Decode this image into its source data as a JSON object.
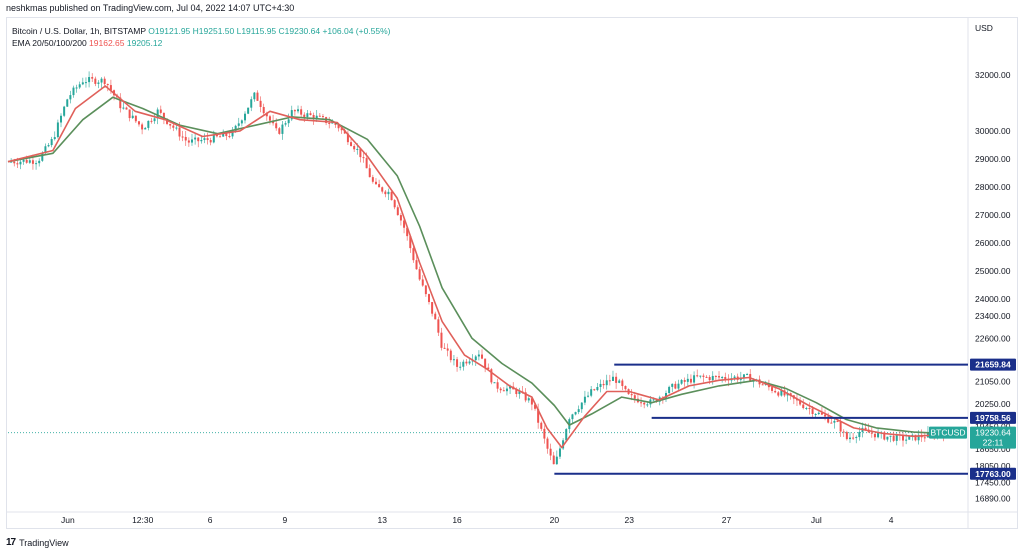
{
  "publish_line": "neshkmas published on TradingView.com, Jul 04, 2022 14:07 UTC+4:30",
  "legend": {
    "symbol": "Bitcoin / U.S. Dollar, 1h, BITSTAMP",
    "ohlc": "O19121.95 H19251.50 L19115.95 C19230.64 +106.04 (+0.55%)",
    "ema_label": "EMA 20/50/100/200",
    "ema_fast": "19162.65",
    "ema_slow": "19205.12"
  },
  "currency": "USD",
  "footer": {
    "brand": "TradingView"
  },
  "colors": {
    "up": "#26a69a",
    "down": "#ef5350",
    "ema_fast": "#e0605a",
    "ema_slow": "#5b8f5b",
    "level": "#1a2f8a",
    "badge_last": "#26a69a"
  },
  "chart_data": {
    "type": "candlestick",
    "title": "Bitcoin / U.S. Dollar, 1h, BITSTAMP",
    "ylabel": "USD",
    "ylim": [
      16400,
      33600
    ],
    "y_ticks": [
      32000,
      30000,
      29000,
      28000,
      27000,
      26000,
      25000,
      24000,
      23400,
      22600,
      21050,
      20250,
      19450,
      18650,
      18050,
      17450,
      16890
    ],
    "x_ticks": [
      "Jun",
      "12:30",
      "6",
      "9",
      "13",
      "16",
      "20",
      "23",
      "27",
      "Jul",
      "4"
    ],
    "price_path": [
      {
        "t": 0,
        "p": 28900
      },
      {
        "t": 4,
        "p": 28950
      },
      {
        "t": 6,
        "p": 29700
      },
      {
        "t": 8,
        "p": 31200
      },
      {
        "t": 10,
        "p": 31800
      },
      {
        "t": 13,
        "p": 31800
      },
      {
        "t": 15,
        "p": 30900
      },
      {
        "t": 18,
        "p": 30100
      },
      {
        "t": 20,
        "p": 30700
      },
      {
        "t": 24,
        "p": 29600
      },
      {
        "t": 27,
        "p": 29700
      },
      {
        "t": 30,
        "p": 29900
      },
      {
        "t": 33,
        "p": 31300
      },
      {
        "t": 36,
        "p": 29900
      },
      {
        "t": 38,
        "p": 30700
      },
      {
        "t": 41,
        "p": 30500
      },
      {
        "t": 44,
        "p": 30200
      },
      {
        "t": 47,
        "p": 29200
      },
      {
        "t": 49,
        "p": 28000
      },
      {
        "t": 51,
        "p": 27800
      },
      {
        "t": 53,
        "p": 26500
      },
      {
        "t": 55,
        "p": 24700
      },
      {
        "t": 57,
        "p": 23300
      },
      {
        "t": 58,
        "p": 22300
      },
      {
        "t": 60,
        "p": 21600
      },
      {
        "t": 63,
        "p": 22100
      },
      {
        "t": 65,
        "p": 20900
      },
      {
        "t": 68,
        "p": 20700
      },
      {
        "t": 70,
        "p": 20300
      },
      {
        "t": 72,
        "p": 18700
      },
      {
        "t": 73,
        "p": 18000
      },
      {
        "t": 75,
        "p": 19800
      },
      {
        "t": 78,
        "p": 20700
      },
      {
        "t": 81,
        "p": 21200
      },
      {
        "t": 83,
        "p": 20500
      },
      {
        "t": 86,
        "p": 20300
      },
      {
        "t": 89,
        "p": 20900
      },
      {
        "t": 92,
        "p": 21200
      },
      {
        "t": 96,
        "p": 21200
      },
      {
        "t": 99,
        "p": 21200
      },
      {
        "t": 102,
        "p": 20800
      },
      {
        "t": 105,
        "p": 20400
      },
      {
        "t": 107,
        "p": 20100
      },
      {
        "t": 109,
        "p": 19800
      },
      {
        "t": 111,
        "p": 19500
      },
      {
        "t": 112,
        "p": 19000
      },
      {
        "t": 114,
        "p": 19300
      },
      {
        "t": 117,
        "p": 19100
      },
      {
        "t": 120,
        "p": 19000
      },
      {
        "t": 123,
        "p": 19150
      },
      {
        "t": 125,
        "p": 19230
      }
    ],
    "ema_fast_path": [
      {
        "t": 0,
        "p": 28900
      },
      {
        "t": 6,
        "p": 29300
      },
      {
        "t": 9,
        "p": 30800
      },
      {
        "t": 13,
        "p": 31600
      },
      {
        "t": 17,
        "p": 30700
      },
      {
        "t": 21,
        "p": 30400
      },
      {
        "t": 26,
        "p": 29800
      },
      {
        "t": 31,
        "p": 30000
      },
      {
        "t": 35,
        "p": 30700
      },
      {
        "t": 39,
        "p": 30400
      },
      {
        "t": 44,
        "p": 30300
      },
      {
        "t": 48,
        "p": 29100
      },
      {
        "t": 52,
        "p": 27600
      },
      {
        "t": 55,
        "p": 25300
      },
      {
        "t": 58,
        "p": 23200
      },
      {
        "t": 61,
        "p": 22000
      },
      {
        "t": 64,
        "p": 21500
      },
      {
        "t": 67,
        "p": 20900
      },
      {
        "t": 70,
        "p": 20500
      },
      {
        "t": 72,
        "p": 19400
      },
      {
        "t": 74,
        "p": 18700
      },
      {
        "t": 77,
        "p": 19800
      },
      {
        "t": 80,
        "p": 20700
      },
      {
        "t": 83,
        "p": 20700
      },
      {
        "t": 87,
        "p": 20400
      },
      {
        "t": 91,
        "p": 20900
      },
      {
        "t": 95,
        "p": 21100
      },
      {
        "t": 99,
        "p": 21200
      },
      {
        "t": 103,
        "p": 20800
      },
      {
        "t": 107,
        "p": 20200
      },
      {
        "t": 110,
        "p": 19800
      },
      {
        "t": 113,
        "p": 19400
      },
      {
        "t": 117,
        "p": 19200
      },
      {
        "t": 121,
        "p": 19100
      },
      {
        "t": 125,
        "p": 19162
      }
    ],
    "ema_slow_path": [
      {
        "t": 0,
        "p": 28900
      },
      {
        "t": 6,
        "p": 29200
      },
      {
        "t": 10,
        "p": 30400
      },
      {
        "t": 14,
        "p": 31200
      },
      {
        "t": 18,
        "p": 30800
      },
      {
        "t": 23,
        "p": 30200
      },
      {
        "t": 28,
        "p": 29900
      },
      {
        "t": 33,
        "p": 30200
      },
      {
        "t": 38,
        "p": 30500
      },
      {
        "t": 43,
        "p": 30400
      },
      {
        "t": 48,
        "p": 29700
      },
      {
        "t": 52,
        "p": 28400
      },
      {
        "t": 55,
        "p": 26600
      },
      {
        "t": 58,
        "p": 24400
      },
      {
        "t": 62,
        "p": 22600
      },
      {
        "t": 66,
        "p": 21700
      },
      {
        "t": 70,
        "p": 21000
      },
      {
        "t": 73,
        "p": 20200
      },
      {
        "t": 75,
        "p": 19500
      },
      {
        "t": 78,
        "p": 19900
      },
      {
        "t": 82,
        "p": 20500
      },
      {
        "t": 86,
        "p": 20300
      },
      {
        "t": 90,
        "p": 20600
      },
      {
        "t": 95,
        "p": 20900
      },
      {
        "t": 100,
        "p": 21100
      },
      {
        "t": 104,
        "p": 20800
      },
      {
        "t": 108,
        "p": 20300
      },
      {
        "t": 112,
        "p": 19700
      },
      {
        "t": 116,
        "p": 19400
      },
      {
        "t": 121,
        "p": 19250
      },
      {
        "t": 125,
        "p": 19205
      }
    ],
    "levels": [
      {
        "price": 21659.84,
        "label": "21659.84",
        "t_start": 81
      },
      {
        "price": 19758.56,
        "label": "19758.56",
        "t_start": 86
      },
      {
        "price": 17763.0,
        "label": "17763.00",
        "t_start": 73
      }
    ],
    "last_price": {
      "symbol": "BTCUSD",
      "price": "19230.64",
      "countdown": "22:11",
      "value": 19230.64
    },
    "grid": false
  }
}
